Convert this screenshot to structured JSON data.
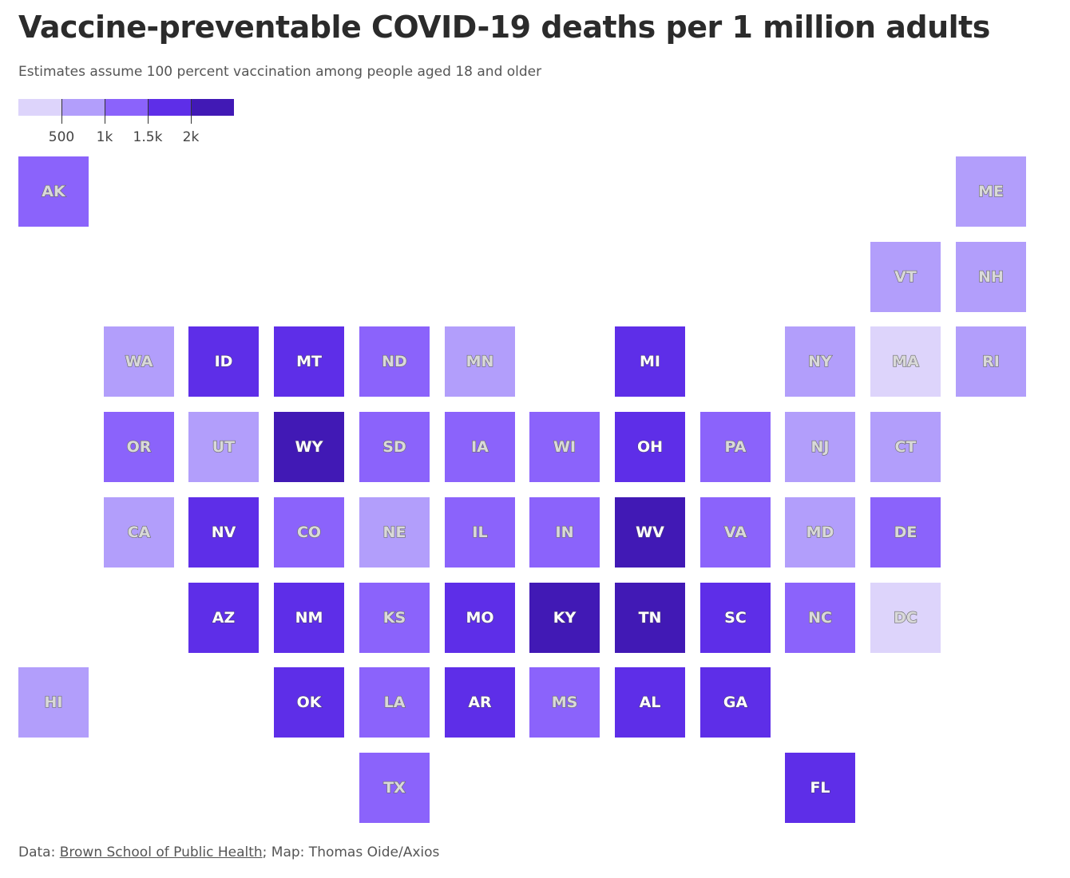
{
  "title": "Vaccine-preventable COVID-19 deaths per 1 million adults",
  "subtitle": "Estimates assume 100 percent vaccination among people aged 18 and older",
  "legend": {
    "colors": [
      "#ddd4fb",
      "#b29efb",
      "#8b63fb",
      "#5e2ee8",
      "#4119b5"
    ],
    "ticks": [
      "500",
      "1k",
      "1.5k",
      "2k"
    ]
  },
  "chart_data": {
    "type": "tile-grid-choropleth",
    "title": "Vaccine-preventable COVID-19 deaths per 1 million adults",
    "subtitle": "Estimates assume 100 percent vaccination among people aged 18 and older",
    "bins": [
      {
        "label": "<500",
        "color": "#ddd4fb"
      },
      {
        "label": "500-1k",
        "color": "#b29efb"
      },
      {
        "label": "1k-1.5k",
        "color": "#8b63fb"
      },
      {
        "label": "1.5k-2k",
        "color": "#5e2ee8"
      },
      {
        "label": ">2k",
        "color": "#4119b5"
      }
    ],
    "states": [
      {
        "abbr": "AK",
        "row": 0,
        "col": 0,
        "bin": 2
      },
      {
        "abbr": "ME",
        "row": 0,
        "col": 11,
        "bin": 1
      },
      {
        "abbr": "VT",
        "row": 1,
        "col": 10,
        "bin": 1
      },
      {
        "abbr": "NH",
        "row": 1,
        "col": 11,
        "bin": 1
      },
      {
        "abbr": "WA",
        "row": 2,
        "col": 1,
        "bin": 1
      },
      {
        "abbr": "ID",
        "row": 2,
        "col": 2,
        "bin": 3
      },
      {
        "abbr": "MT",
        "row": 2,
        "col": 3,
        "bin": 3
      },
      {
        "abbr": "ND",
        "row": 2,
        "col": 4,
        "bin": 2
      },
      {
        "abbr": "MN",
        "row": 2,
        "col": 5,
        "bin": 1
      },
      {
        "abbr": "MI",
        "row": 2,
        "col": 7,
        "bin": 3
      },
      {
        "abbr": "NY",
        "row": 2,
        "col": 9,
        "bin": 1
      },
      {
        "abbr": "MA",
        "row": 2,
        "col": 10,
        "bin": 0
      },
      {
        "abbr": "RI",
        "row": 2,
        "col": 11,
        "bin": 1
      },
      {
        "abbr": "OR",
        "row": 3,
        "col": 1,
        "bin": 2
      },
      {
        "abbr": "UT",
        "row": 3,
        "col": 2,
        "bin": 1
      },
      {
        "abbr": "WY",
        "row": 3,
        "col": 3,
        "bin": 4
      },
      {
        "abbr": "SD",
        "row": 3,
        "col": 4,
        "bin": 2
      },
      {
        "abbr": "IA",
        "row": 3,
        "col": 5,
        "bin": 2
      },
      {
        "abbr": "WI",
        "row": 3,
        "col": 6,
        "bin": 2
      },
      {
        "abbr": "OH",
        "row": 3,
        "col": 7,
        "bin": 3
      },
      {
        "abbr": "PA",
        "row": 3,
        "col": 8,
        "bin": 2
      },
      {
        "abbr": "NJ",
        "row": 3,
        "col": 9,
        "bin": 1
      },
      {
        "abbr": "CT",
        "row": 3,
        "col": 10,
        "bin": 1
      },
      {
        "abbr": "CA",
        "row": 4,
        "col": 1,
        "bin": 1
      },
      {
        "abbr": "NV",
        "row": 4,
        "col": 2,
        "bin": 3
      },
      {
        "abbr": "CO",
        "row": 4,
        "col": 3,
        "bin": 2
      },
      {
        "abbr": "NE",
        "row": 4,
        "col": 4,
        "bin": 1
      },
      {
        "abbr": "IL",
        "row": 4,
        "col": 5,
        "bin": 2
      },
      {
        "abbr": "IN",
        "row": 4,
        "col": 6,
        "bin": 2
      },
      {
        "abbr": "WV",
        "row": 4,
        "col": 7,
        "bin": 4
      },
      {
        "abbr": "VA",
        "row": 4,
        "col": 8,
        "bin": 2
      },
      {
        "abbr": "MD",
        "row": 4,
        "col": 9,
        "bin": 1
      },
      {
        "abbr": "DE",
        "row": 4,
        "col": 10,
        "bin": 2
      },
      {
        "abbr": "AZ",
        "row": 5,
        "col": 2,
        "bin": 3
      },
      {
        "abbr": "NM",
        "row": 5,
        "col": 3,
        "bin": 3
      },
      {
        "abbr": "KS",
        "row": 5,
        "col": 4,
        "bin": 2
      },
      {
        "abbr": "MO",
        "row": 5,
        "col": 5,
        "bin": 3
      },
      {
        "abbr": "KY",
        "row": 5,
        "col": 6,
        "bin": 4
      },
      {
        "abbr": "TN",
        "row": 5,
        "col": 7,
        "bin": 4
      },
      {
        "abbr": "SC",
        "row": 5,
        "col": 8,
        "bin": 3
      },
      {
        "abbr": "NC",
        "row": 5,
        "col": 9,
        "bin": 2
      },
      {
        "abbr": "DC",
        "row": 5,
        "col": 10,
        "bin": 0
      },
      {
        "abbr": "HI",
        "row": 6,
        "col": 0,
        "bin": 1
      },
      {
        "abbr": "OK",
        "row": 6,
        "col": 3,
        "bin": 3
      },
      {
        "abbr": "LA",
        "row": 6,
        "col": 4,
        "bin": 2
      },
      {
        "abbr": "AR",
        "row": 6,
        "col": 5,
        "bin": 3
      },
      {
        "abbr": "MS",
        "row": 6,
        "col": 6,
        "bin": 2
      },
      {
        "abbr": "AL",
        "row": 6,
        "col": 7,
        "bin": 3
      },
      {
        "abbr": "GA",
        "row": 6,
        "col": 8,
        "bin": 3
      },
      {
        "abbr": "TX",
        "row": 7,
        "col": 4,
        "bin": 2
      },
      {
        "abbr": "FL",
        "row": 7,
        "col": 9,
        "bin": 3
      }
    ]
  },
  "footer": {
    "prefix": "Data: ",
    "source_link": "Brown School of Public Health",
    "suffix": "; Map: Thomas Oide/Axios"
  }
}
